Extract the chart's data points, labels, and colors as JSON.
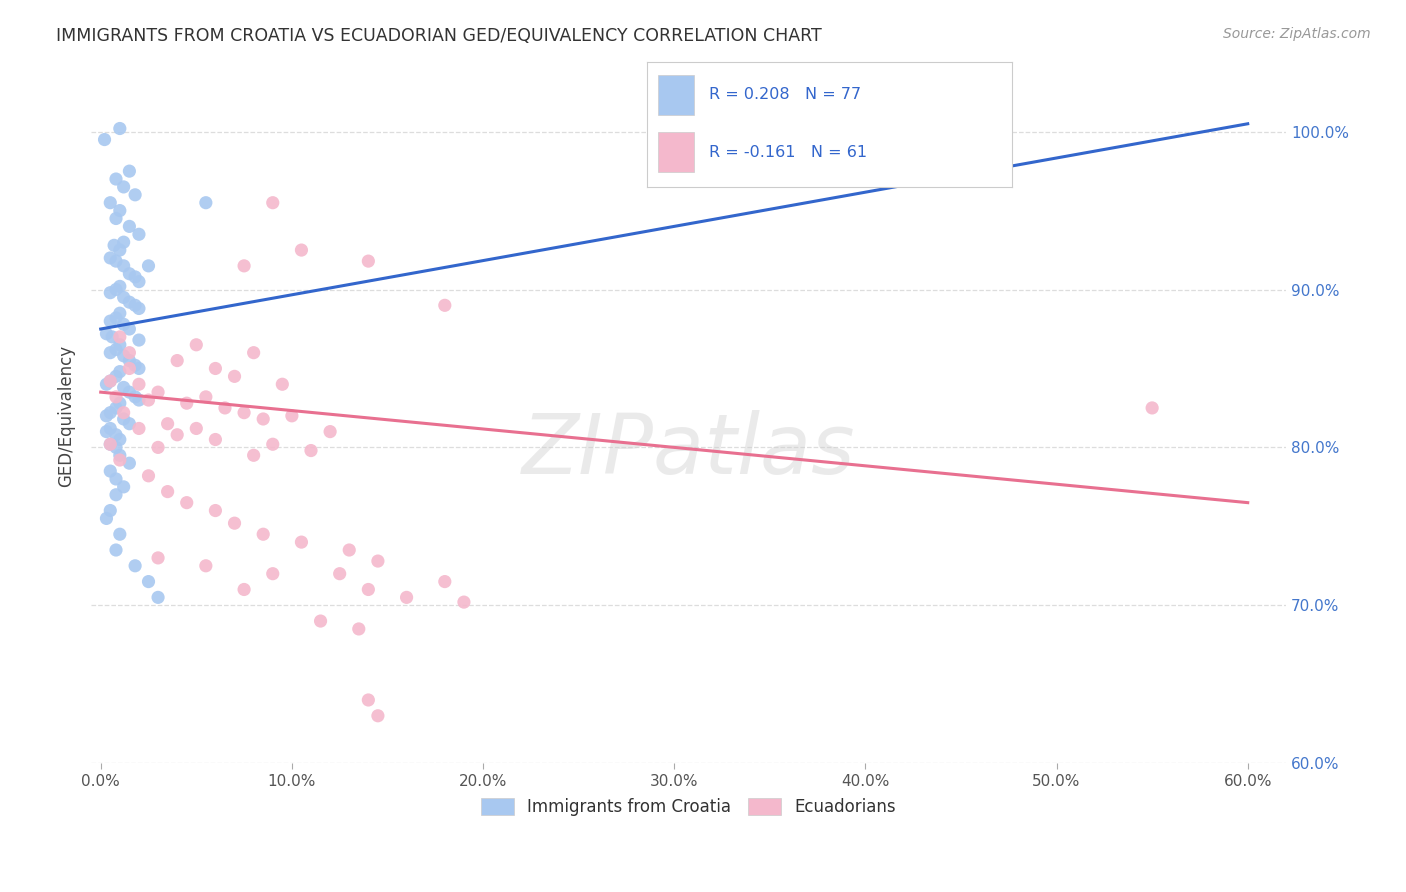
{
  "title": "IMMIGRANTS FROM CROATIA VS ECUADORIAN GED/EQUIVALENCY CORRELATION CHART",
  "source": "Source: ZipAtlas.com",
  "ylabel_label": "GED/Equivalency",
  "legend_labels": [
    "Immigrants from Croatia",
    "Ecuadorians"
  ],
  "legend_R": [
    "R = 0.208",
    "R = -0.161"
  ],
  "legend_N": [
    "N = 77",
    "N = 61"
  ],
  "blue_color": "#a8c8f0",
  "pink_color": "#f4b8cc",
  "blue_line_color": "#3366cc",
  "pink_line_color": "#e87090",
  "watermark": "ZIPatlas",
  "blue_scatter": [
    [
      0.02,
      99.5
    ],
    [
      0.1,
      100.2
    ],
    [
      0.15,
      97.5
    ],
    [
      0.08,
      97.0
    ],
    [
      0.12,
      96.5
    ],
    [
      0.18,
      96.0
    ],
    [
      0.05,
      95.5
    ],
    [
      0.1,
      95.0
    ],
    [
      0.08,
      94.5
    ],
    [
      0.15,
      94.0
    ],
    [
      0.2,
      93.5
    ],
    [
      0.12,
      93.0
    ],
    [
      0.07,
      92.8
    ],
    [
      0.1,
      92.5
    ],
    [
      0.05,
      92.0
    ],
    [
      0.08,
      91.8
    ],
    [
      0.12,
      91.5
    ],
    [
      0.15,
      91.0
    ],
    [
      0.18,
      90.8
    ],
    [
      0.2,
      90.5
    ],
    [
      0.1,
      90.2
    ],
    [
      0.08,
      90.0
    ],
    [
      0.05,
      89.8
    ],
    [
      0.12,
      89.5
    ],
    [
      0.15,
      89.2
    ],
    [
      0.18,
      89.0
    ],
    [
      0.2,
      88.8
    ],
    [
      0.1,
      88.5
    ],
    [
      0.08,
      88.2
    ],
    [
      0.05,
      88.0
    ],
    [
      0.12,
      87.8
    ],
    [
      0.15,
      87.5
    ],
    [
      0.03,
      87.2
    ],
    [
      0.06,
      87.0
    ],
    [
      0.2,
      86.8
    ],
    [
      0.1,
      86.5
    ],
    [
      0.08,
      86.2
    ],
    [
      0.05,
      86.0
    ],
    [
      0.12,
      85.8
    ],
    [
      0.15,
      85.5
    ],
    [
      0.18,
      85.2
    ],
    [
      0.2,
      85.0
    ],
    [
      0.1,
      84.8
    ],
    [
      0.08,
      84.5
    ],
    [
      0.05,
      84.2
    ],
    [
      0.03,
      84.0
    ],
    [
      0.12,
      83.8
    ],
    [
      0.15,
      83.5
    ],
    [
      0.18,
      83.2
    ],
    [
      0.2,
      83.0
    ],
    [
      0.1,
      82.8
    ],
    [
      0.08,
      82.5
    ],
    [
      0.05,
      82.2
    ],
    [
      0.03,
      82.0
    ],
    [
      0.12,
      81.8
    ],
    [
      0.15,
      81.5
    ],
    [
      0.05,
      81.2
    ],
    [
      0.03,
      81.0
    ],
    [
      0.08,
      80.8
    ],
    [
      0.1,
      80.5
    ],
    [
      0.05,
      80.2
    ],
    [
      0.08,
      80.0
    ],
    [
      0.1,
      79.5
    ],
    [
      0.15,
      79.0
    ],
    [
      0.05,
      78.5
    ],
    [
      0.08,
      78.0
    ],
    [
      0.25,
      91.5
    ],
    [
      0.55,
      95.5
    ],
    [
      0.12,
      77.5
    ],
    [
      0.08,
      77.0
    ],
    [
      0.05,
      76.0
    ],
    [
      0.03,
      75.5
    ],
    [
      0.1,
      74.5
    ],
    [
      0.08,
      73.5
    ],
    [
      0.18,
      72.5
    ],
    [
      0.25,
      71.5
    ],
    [
      0.3,
      70.5
    ]
  ],
  "pink_scatter": [
    [
      0.9,
      95.5
    ],
    [
      1.05,
      92.5
    ],
    [
      0.75,
      91.5
    ],
    [
      1.4,
      91.8
    ],
    [
      1.8,
      89.0
    ],
    [
      0.5,
      86.5
    ],
    [
      0.8,
      86.0
    ],
    [
      0.4,
      85.5
    ],
    [
      0.6,
      85.0
    ],
    [
      0.7,
      84.5
    ],
    [
      0.95,
      84.0
    ],
    [
      0.3,
      83.5
    ],
    [
      0.55,
      83.2
    ],
    [
      0.45,
      82.8
    ],
    [
      0.65,
      82.5
    ],
    [
      0.75,
      82.2
    ],
    [
      1.0,
      82.0
    ],
    [
      0.85,
      81.8
    ],
    [
      0.35,
      81.5
    ],
    [
      0.5,
      81.2
    ],
    [
      1.2,
      81.0
    ],
    [
      0.4,
      80.8
    ],
    [
      0.6,
      80.5
    ],
    [
      0.9,
      80.2
    ],
    [
      0.3,
      80.0
    ],
    [
      1.1,
      79.8
    ],
    [
      0.8,
      79.5
    ],
    [
      0.15,
      85.0
    ],
    [
      0.2,
      84.0
    ],
    [
      0.25,
      83.0
    ],
    [
      0.1,
      87.0
    ],
    [
      0.15,
      86.0
    ],
    [
      0.05,
      84.2
    ],
    [
      0.08,
      83.2
    ],
    [
      0.12,
      82.2
    ],
    [
      0.2,
      81.2
    ],
    [
      0.05,
      80.2
    ],
    [
      0.1,
      79.2
    ],
    [
      0.25,
      78.2
    ],
    [
      0.35,
      77.2
    ],
    [
      0.45,
      76.5
    ],
    [
      0.6,
      76.0
    ],
    [
      0.7,
      75.2
    ],
    [
      0.85,
      74.5
    ],
    [
      1.05,
      74.0
    ],
    [
      1.3,
      73.5
    ],
    [
      0.3,
      73.0
    ],
    [
      0.55,
      72.5
    ],
    [
      0.9,
      72.0
    ],
    [
      1.8,
      71.5
    ],
    [
      1.4,
      71.0
    ],
    [
      0.75,
      71.0
    ],
    [
      1.6,
      70.5
    ],
    [
      1.9,
      70.2
    ],
    [
      5.5,
      82.5
    ],
    [
      1.25,
      72.0
    ],
    [
      1.45,
      72.8
    ],
    [
      1.15,
      69.0
    ],
    [
      1.35,
      68.5
    ],
    [
      1.45,
      63.0
    ],
    [
      1.4,
      64.0
    ]
  ],
  "blue_trendline_x": [
    0.0,
    6.0
  ],
  "blue_trendline_y": [
    87.5,
    100.5
  ],
  "pink_trendline_x": [
    0.0,
    6.0
  ],
  "pink_trendline_y": [
    83.5,
    76.5
  ],
  "xlim": [
    -0.05,
    6.2
  ],
  "ylim": [
    60.0,
    104.0
  ],
  "x_tick_positions": [
    0.0,
    1.0,
    2.0,
    3.0,
    4.0,
    5.0,
    6.0
  ],
  "x_tick_labels": [
    "0.0%",
    "10.0%",
    "20.0%",
    "30.0%",
    "40.0%",
    "50.0%",
    "60.0%"
  ],
  "y_tick_positions": [
    60,
    70,
    80,
    90,
    100
  ],
  "y_tick_labels": [
    "60.0%",
    "70.0%",
    "80.0%",
    "90.0%",
    "100.0%"
  ]
}
